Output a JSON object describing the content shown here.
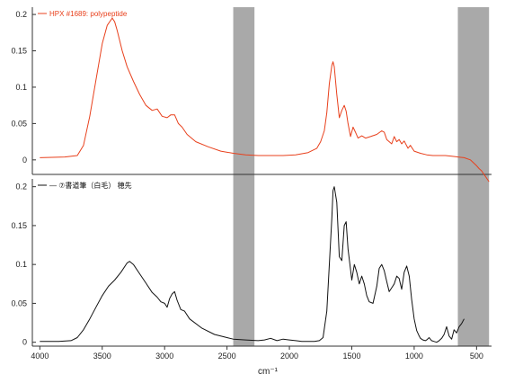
{
  "chart_data": {
    "type": "line",
    "xlabel": "cm⁻¹",
    "x_ticks": [
      4000,
      3500,
      3000,
      2500,
      2000,
      1500,
      1000,
      500
    ],
    "xlim": [
      4060,
      380
    ],
    "shaded_bands": [
      [
        2450,
        2280
      ],
      [
        650,
        400
      ]
    ],
    "band_color": "#a9a9a9",
    "panels": [
      {
        "ylim": [
          -0.02,
          0.21
        ],
        "y_ticks": [
          0,
          0.05,
          0.1,
          0.15,
          0.2
        ],
        "y_tick_labels": [
          "0",
          "0.05",
          "0.1",
          "0.15",
          "0.2"
        ],
        "series": [
          {
            "name": "HPX #1689: polypeptide",
            "color": "#e8401c",
            "x": [
              4000,
              3800,
              3700,
              3650,
              3600,
              3550,
              3500,
              3460,
              3420,
              3400,
              3380,
              3340,
              3300,
              3250,
              3200,
              3150,
              3100,
              3060,
              3020,
              2980,
              2950,
              2920,
              2890,
              2860,
              2820,
              2750,
              2650,
              2550,
              2450,
              2350,
              2250,
              2150,
              2050,
              1950,
              1850,
              1780,
              1750,
              1720,
              1700,
              1680,
              1660,
              1650,
              1640,
              1620,
              1600,
              1580,
              1560,
              1545,
              1530,
              1510,
              1490,
              1470,
              1450,
              1420,
              1390,
              1350,
              1300,
              1260,
              1240,
              1220,
              1180,
              1160,
              1140,
              1120,
              1100,
              1080,
              1050,
              1030,
              1000,
              950,
              900,
              850,
              800,
              750,
              700,
              650,
              600,
              550,
              500,
              480,
              460,
              440,
              420,
              400
            ],
            "y": [
              0.003,
              0.004,
              0.006,
              0.02,
              0.06,
              0.11,
              0.16,
              0.185,
              0.195,
              0.19,
              0.178,
              0.15,
              0.128,
              0.108,
              0.09,
              0.075,
              0.068,
              0.07,
              0.06,
              0.058,
              0.062,
              0.062,
              0.05,
              0.045,
              0.035,
              0.025,
              0.018,
              0.012,
              0.009,
              0.007,
              0.006,
              0.006,
              0.006,
              0.007,
              0.01,
              0.016,
              0.025,
              0.04,
              0.065,
              0.105,
              0.13,
              0.135,
              0.128,
              0.09,
              0.058,
              0.068,
              0.075,
              0.067,
              0.05,
              0.032,
              0.045,
              0.038,
              0.03,
              0.033,
              0.03,
              0.032,
              0.035,
              0.04,
              0.038,
              0.028,
              0.022,
              0.032,
              0.025,
              0.028,
              0.022,
              0.026,
              0.016,
              0.02,
              0.012,
              0.009,
              0.007,
              0.006,
              0.006,
              0.006,
              0.005,
              0.004,
              0.003,
              0.0,
              -0.008,
              -0.012,
              -0.015,
              -0.02,
              -0.025,
              -0.03
            ]
          }
        ]
      },
      {
        "ylim": [
          -0.005,
          0.21
        ],
        "y_ticks": [
          0,
          0.05,
          0.1,
          0.15,
          0.2
        ],
        "y_tick_labels": [
          "0",
          "0.05",
          "0.1",
          "0.15",
          "0.2"
        ],
        "series": [
          {
            "name": "— ⑦書道筆（白毛） 穂先",
            "color": "#111111",
            "x": [
              4000,
              3850,
              3750,
              3700,
              3650,
              3600,
              3550,
              3500,
              3450,
              3400,
              3350,
              3300,
              3280,
              3250,
              3200,
              3150,
              3100,
              3060,
              3030,
              3000,
              2980,
              2960,
              2940,
              2920,
              2900,
              2870,
              2840,
              2800,
              2700,
              2600,
              2500,
              2450,
              2350,
              2250,
              2200,
              2150,
              2100,
              2050,
              2000,
              1950,
              1900,
              1850,
              1800,
              1760,
              1730,
              1700,
              1680,
              1660,
              1650,
              1640,
              1620,
              1600,
              1580,
              1560,
              1545,
              1530,
              1500,
              1480,
              1460,
              1440,
              1420,
              1400,
              1380,
              1360,
              1330,
              1300,
              1280,
              1260,
              1240,
              1220,
              1200,
              1180,
              1160,
              1140,
              1120,
              1100,
              1080,
              1060,
              1040,
              1020,
              1000,
              980,
              960,
              950,
              930,
              910,
              900,
              880,
              860,
              840,
              820,
              800,
              780,
              760,
              740,
              720,
              700,
              680,
              660,
              640,
              620,
              600
            ],
            "y": [
              0.001,
              0.001,
              0.002,
              0.006,
              0.016,
              0.03,
              0.045,
              0.06,
              0.072,
              0.08,
              0.09,
              0.102,
              0.104,
              0.1,
              0.088,
              0.076,
              0.064,
              0.058,
              0.052,
              0.05,
              0.045,
              0.056,
              0.062,
              0.065,
              0.054,
              0.042,
              0.04,
              0.03,
              0.018,
              0.01,
              0.006,
              0.004,
              0.003,
              0.002,
              0.003,
              0.005,
              0.002,
              0.004,
              0.003,
              0.002,
              0.001,
              0.001,
              0.001,
              0.002,
              0.006,
              0.04,
              0.1,
              0.16,
              0.195,
              0.2,
              0.18,
              0.11,
              0.105,
              0.15,
              0.155,
              0.12,
              0.08,
              0.1,
              0.09,
              0.075,
              0.085,
              0.075,
              0.06,
              0.052,
              0.05,
              0.072,
              0.095,
              0.1,
              0.092,
              0.078,
              0.065,
              0.07,
              0.075,
              0.085,
              0.082,
              0.068,
              0.09,
              0.098,
              0.085,
              0.055,
              0.03,
              0.015,
              0.008,
              0.005,
              0.003,
              0.002,
              0.003,
              0.006,
              0.002,
              0.001,
              0.0,
              0.002,
              0.005,
              0.01,
              0.02,
              0.008,
              0.004,
              0.016,
              0.012,
              0.02,
              0.024,
              0.03
            ]
          }
        ]
      }
    ]
  }
}
